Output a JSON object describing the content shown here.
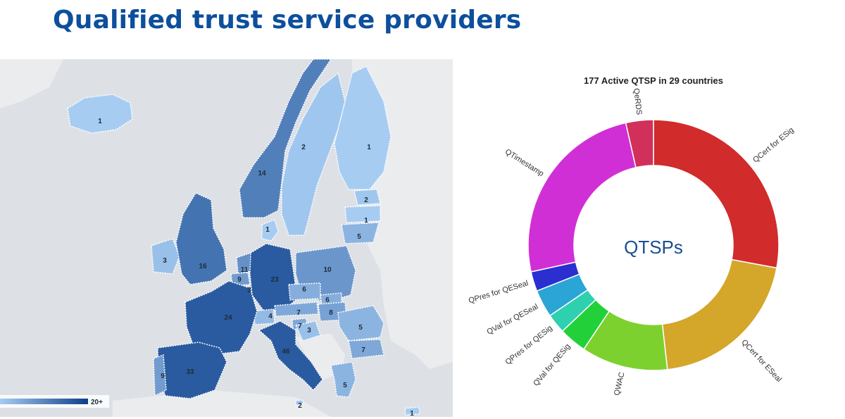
{
  "page": {
    "title": "Qualified trust service providers"
  },
  "map": {
    "legend_max_label": "20+",
    "colors": {
      "sea": "#dde1e6",
      "land": "#ebecee",
      "low": "#a6ccf2",
      "high": "#2a5ba0"
    },
    "countries": [
      {
        "id": "iceland",
        "value": "1"
      },
      {
        "id": "norway",
        "value": "14"
      },
      {
        "id": "sweden",
        "value": "2"
      },
      {
        "id": "finland",
        "value": "1"
      },
      {
        "id": "estonia",
        "value": "2"
      },
      {
        "id": "latvia",
        "value": "1"
      },
      {
        "id": "lithuania",
        "value": "5"
      },
      {
        "id": "denmark",
        "value": "1"
      },
      {
        "id": "ireland",
        "value": "3"
      },
      {
        "id": "uk",
        "value": "16"
      },
      {
        "id": "netherlands",
        "value": "11"
      },
      {
        "id": "belgium",
        "value": "9"
      },
      {
        "id": "luxembourg",
        "value": "3"
      },
      {
        "id": "germany",
        "value": "23"
      },
      {
        "id": "poland",
        "value": "10"
      },
      {
        "id": "czechia",
        "value": "6"
      },
      {
        "id": "slovakia",
        "value": "6"
      },
      {
        "id": "austria",
        "value": "7"
      },
      {
        "id": "hungary",
        "value": "8"
      },
      {
        "id": "switzerland",
        "value": "4"
      },
      {
        "id": "france",
        "value": "24"
      },
      {
        "id": "slovenia",
        "value": "7"
      },
      {
        "id": "croatia",
        "value": "3"
      },
      {
        "id": "romania",
        "value": "5"
      },
      {
        "id": "bulgaria",
        "value": "7"
      },
      {
        "id": "italy",
        "value": "46"
      },
      {
        "id": "spain",
        "value": "33"
      },
      {
        "id": "portugal",
        "value": "9"
      },
      {
        "id": "greece",
        "value": "5"
      },
      {
        "id": "malta",
        "value": "2"
      },
      {
        "id": "cyprus",
        "value": "1"
      }
    ]
  },
  "chart_data": {
    "type": "pie",
    "title": "177 Active QTSP in 29 countries",
    "center_label": "QTSPs",
    "categories": [
      "QCert for ESig",
      "QCert for ESeal",
      "QWAC",
      "QVal for QESig",
      "QPres for QESig",
      "QVal for QESeal",
      "QPres for QESeal",
      "QTimestamp",
      "QeRDS"
    ],
    "values": [
      27.5,
      20,
      11,
      3.5,
      2.5,
      3.5,
      2.5,
      24.5,
      3.5
    ],
    "colors": [
      "#d12b2b",
      "#d4a62a",
      "#7dd12e",
      "#22d13a",
      "#2fd0b0",
      "#2aa5d6",
      "#2b2fd0",
      "#d12fd6",
      "#d1305a"
    ]
  }
}
